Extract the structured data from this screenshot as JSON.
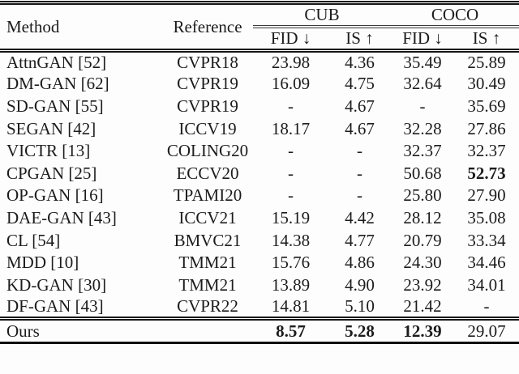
{
  "table": {
    "headers": {
      "method": "Method",
      "reference": "Reference",
      "group_cub": "CUB",
      "group_coco": "COCO",
      "cub_fid": "FID ↓",
      "cub_is": "IS ↑",
      "coco_fid": "FID ↓",
      "coco_is": "IS ↑"
    },
    "rows": [
      {
        "method": "AttnGAN [52]",
        "reference": "CVPR18",
        "cub_fid": "23.98",
        "cub_is": "4.36",
        "coco_fid": "35.49",
        "coco_is": "25.89"
      },
      {
        "method": "DM-GAN [62]",
        "reference": "CVPR19",
        "cub_fid": "16.09",
        "cub_is": "4.75",
        "coco_fid": "32.64",
        "coco_is": "30.49"
      },
      {
        "method": "SD-GAN [55]",
        "reference": "CVPR19",
        "cub_fid": "-",
        "cub_is": "4.67",
        "coco_fid": "-",
        "coco_is": "35.69"
      },
      {
        "method": "SEGAN [42]",
        "reference": "ICCV19",
        "cub_fid": "18.17",
        "cub_is": "4.67",
        "coco_fid": "32.28",
        "coco_is": "27.86"
      },
      {
        "method": "VICTR [13]",
        "reference": "COLING20",
        "cub_fid": "-",
        "cub_is": "-",
        "coco_fid": "32.37",
        "coco_is": "32.37"
      },
      {
        "method": "CPGAN [25]",
        "reference": "ECCV20",
        "cub_fid": "-",
        "cub_is": "-",
        "coco_fid": "50.68",
        "coco_is": "52.73"
      },
      {
        "method": "OP-GAN [16]",
        "reference": "TPAMI20",
        "cub_fid": "-",
        "cub_is": "-",
        "coco_fid": "25.80",
        "coco_is": "27.90"
      },
      {
        "method": "DAE-GAN [43]",
        "reference": "ICCV21",
        "cub_fid": "15.19",
        "cub_is": "4.42",
        "coco_fid": "28.12",
        "coco_is": "35.08"
      },
      {
        "method": "CL [54]",
        "reference": "BMVC21",
        "cub_fid": "14.38",
        "cub_is": "4.77",
        "coco_fid": "20.79",
        "coco_is": "33.34"
      },
      {
        "method": "MDD [10]",
        "reference": "TMM21",
        "cub_fid": "15.76",
        "cub_is": "4.86",
        "coco_fid": "24.30",
        "coco_is": "34.46"
      },
      {
        "method": "KD-GAN [30]",
        "reference": "TMM21",
        "cub_fid": "13.89",
        "cub_is": "4.90",
        "coco_fid": "23.92",
        "coco_is": "34.01"
      },
      {
        "method": "DF-GAN [43]",
        "reference": "CVPR22",
        "cub_fid": "14.81",
        "cub_is": "5.10",
        "coco_fid": "21.42",
        "coco_is": "-"
      },
      {
        "method": "Ours",
        "reference": "",
        "cub_fid": "8.57",
        "cub_is": "5.28",
        "coco_fid": "12.39",
        "coco_is": "29.07"
      }
    ]
  },
  "colors": {
    "text": "#1c1c1c",
    "rule": "#151515",
    "background": "#fdfdfd"
  }
}
